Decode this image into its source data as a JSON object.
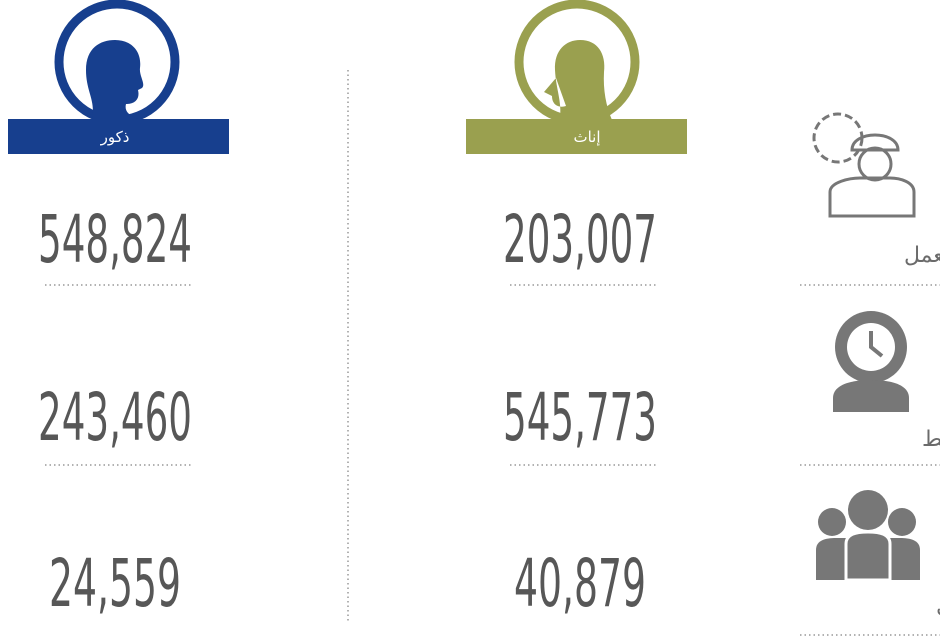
{
  "columns": [
    {
      "label": "ذكور",
      "values": [
        "548,824",
        "243,460",
        "24,559"
      ]
    },
    {
      "label": "إناث",
      "values": [
        "203,007",
        "545,773",
        "40,879"
      ]
    }
  ],
  "categories": [
    "يعمل",
    "غير نشط",
    "باحث عن عمل"
  ]
}
